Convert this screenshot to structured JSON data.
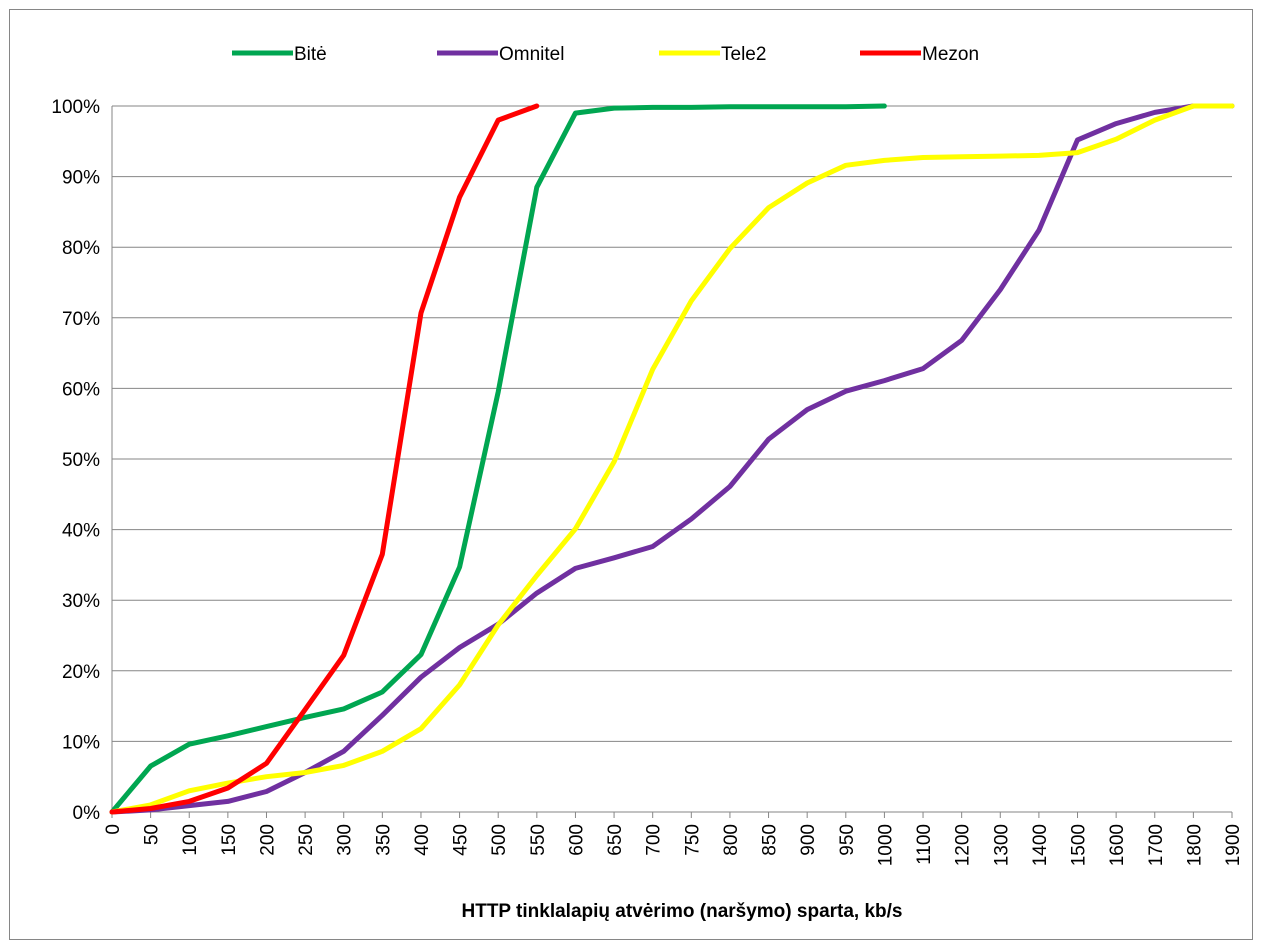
{
  "chart_data": {
    "type": "line",
    "title": "",
    "xlabel": "HTTP tinklalapių atvėrimo (naršymo) sparta, kb/s",
    "ylabel": "",
    "x": [
      "0",
      "50",
      "100",
      "150",
      "200",
      "250",
      "300",
      "350",
      "400",
      "450",
      "500",
      "550",
      "600",
      "650",
      "700",
      "750",
      "800",
      "850",
      "900",
      "950",
      "1000",
      "1100",
      "1200",
      "1300",
      "1400",
      "1500",
      "1600",
      "1700",
      "1800",
      "1900"
    ],
    "y_ticks": [
      "0%",
      "10%",
      "20%",
      "30%",
      "40%",
      "50%",
      "60%",
      "70%",
      "80%",
      "90%",
      "100%"
    ],
    "ylim": [
      0,
      100
    ],
    "grid": true,
    "legend_position": "top",
    "series": [
      {
        "name": "Bitė",
        "color": "#00A651",
        "values": [
          0,
          6.5,
          9.6,
          10.8,
          12.1,
          13.4,
          14.6,
          17,
          22.3,
          34.7,
          59.5,
          88.5,
          99,
          99.7,
          99.8,
          99.8,
          99.9,
          99.9,
          99.9,
          99.9,
          100,
          null,
          null,
          null,
          null,
          null,
          null,
          null,
          null,
          null
        ]
      },
      {
        "name": "Omnitel",
        "color": "#7030A0",
        "values": [
          0,
          0.3,
          0.9,
          1.5,
          2.9,
          5.6,
          8.6,
          13.7,
          19.1,
          23.3,
          26.6,
          31,
          34.5,
          36,
          37.6,
          41.5,
          46.1,
          52.8,
          57,
          59.6,
          61.1,
          62.8,
          66.8,
          74,
          82.4,
          95.2,
          97.5,
          99.1,
          100,
          100
        ]
      },
      {
        "name": "Tele2",
        "color": "#FFFF00",
        "values": [
          0,
          1,
          3,
          4.1,
          5,
          5.6,
          6.6,
          8.6,
          11.8,
          18,
          26.5,
          33.5,
          40.1,
          49.6,
          62.7,
          72.4,
          79.8,
          85.6,
          89.1,
          91.6,
          92.3,
          92.7,
          92.8,
          92.9,
          93,
          93.4,
          95.3,
          98,
          100,
          100
        ]
      },
      {
        "name": "Mezon",
        "color": "#FF0000",
        "values": [
          0,
          0.5,
          1.5,
          3.4,
          6.9,
          14.5,
          22.2,
          36.5,
          70.7,
          87.1,
          98,
          100,
          null,
          null,
          null,
          null,
          null,
          null,
          null,
          null,
          null,
          null,
          null,
          null,
          null,
          null,
          null,
          null,
          null,
          null
        ]
      }
    ]
  }
}
